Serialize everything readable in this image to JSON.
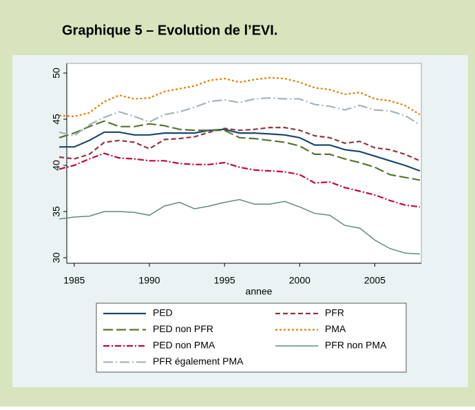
{
  "chart_data": {
    "type": "line",
    "title": "Graphique 5 – Evolution de l’EVI.",
    "x_label": "annee",
    "x": [
      1984,
      1985,
      1986,
      1987,
      1988,
      1989,
      1990,
      1991,
      1992,
      1993,
      1994,
      1995,
      1996,
      1997,
      1998,
      1999,
      2000,
      2001,
      2002,
      2003,
      2004,
      2005,
      2006,
      2007,
      2008
    ],
    "xlim": [
      1984,
      2008
    ],
    "xticks": [
      1985,
      1990,
      1995,
      2000,
      2005
    ],
    "ylim": [
      30,
      50
    ],
    "yticks": [
      30,
      35,
      40,
      45,
      50
    ],
    "series": [
      {
        "name": "PED",
        "color": "#1a476f",
        "dash": "solid",
        "values": [
          42,
          42,
          42.7,
          43.6,
          43.6,
          43.3,
          43.3,
          43.5,
          43.5,
          43.5,
          43.8,
          43.9,
          43.5,
          43.5,
          43.4,
          43.3,
          43,
          42.2,
          42.2,
          41.7,
          41.5,
          41,
          40.5,
          40,
          39.4
        ]
      },
      {
        "name": "PFR",
        "color": "#90353b",
        "dash": "dash",
        "values": [
          40.9,
          40.7,
          41.2,
          42.5,
          42.7,
          42.5,
          41.8,
          42.8,
          42.9,
          43.1,
          43.6,
          44,
          43.8,
          43.9,
          44.1,
          44.1,
          43.8,
          43.2,
          43,
          42.4,
          42.6,
          41.9,
          41.7,
          41.2,
          40.5
        ]
      },
      {
        "name": "PED non PFR",
        "color": "#55752f",
        "dash": "longdash",
        "values": [
          43,
          43.5,
          44.2,
          44.8,
          44.2,
          44.2,
          44.5,
          44.3,
          43.9,
          43.8,
          43.8,
          43.8,
          43,
          42.9,
          42.7,
          42.5,
          42.1,
          41.2,
          41.2,
          40.7,
          40.3,
          39.8,
          39,
          38.7,
          38.4
        ]
      },
      {
        "name": "PMA",
        "color": "#e37e00",
        "dash": "dot",
        "values": [
          45.4,
          45.3,
          45.7,
          46.9,
          47.6,
          47.2,
          47.3,
          48,
          48.3,
          48.6,
          49.2,
          49.4,
          49,
          49.3,
          49.5,
          49.4,
          49,
          48.4,
          48.2,
          47.7,
          47.9,
          47.2,
          47,
          46.5,
          45.5
        ]
      },
      {
        "name": "PED non PMA",
        "color": "#c10534",
        "dash": "dashdot",
        "values": [
          39.6,
          40,
          40.7,
          41.3,
          40.8,
          40.7,
          40.5,
          40.5,
          40.2,
          40.1,
          40.1,
          40.3,
          39.8,
          39.5,
          39.4,
          39.3,
          39,
          38.1,
          38.2,
          37.6,
          37.2,
          36.8,
          36.2,
          35.7,
          35.5
        ]
      },
      {
        "name": "PFR non PMA",
        "color": "#5f8a7e",
        "dash": "solid",
        "values": [
          34.2,
          34.4,
          34.5,
          35,
          35,
          34.9,
          34.6,
          35.6,
          36,
          35.3,
          35.6,
          36,
          36.3,
          35.8,
          35.8,
          36.1,
          35.5,
          34.8,
          34.6,
          33.5,
          33.2,
          31.9,
          31,
          30.5,
          30.4
        ]
      },
      {
        "name": "PFR également PMA",
        "color": "#a3b4be",
        "dash": "longdashdot",
        "values": [
          43.6,
          43.2,
          44.4,
          45.2,
          45.8,
          45.3,
          44.7,
          45.5,
          45.8,
          46.3,
          46.9,
          47.1,
          46.8,
          47.2,
          47.3,
          47.2,
          47.2,
          46.6,
          46.4,
          46,
          46.5,
          46,
          45.9,
          45.4,
          44.4
        ]
      }
    ]
  }
}
